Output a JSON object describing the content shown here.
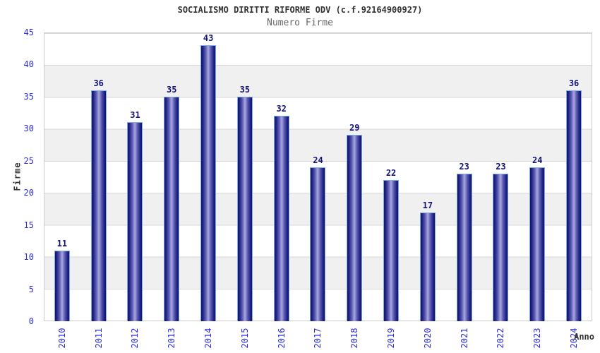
{
  "chart_data": {
    "type": "bar",
    "title": "SOCIALISMO DIRITTI RIFORME ODV (c.f.92164900927)",
    "subtitle": "Numero Firme",
    "xlabel": "Anno",
    "ylabel": "Firme",
    "categories": [
      "2010",
      "2011",
      "2012",
      "2013",
      "2014",
      "2015",
      "2016",
      "2017",
      "2018",
      "2019",
      "2020",
      "2021",
      "2022",
      "2023",
      "2024"
    ],
    "values": [
      11,
      36,
      31,
      35,
      43,
      35,
      32,
      24,
      29,
      22,
      17,
      23,
      23,
      24,
      36
    ],
    "ylim": [
      0,
      45
    ],
    "ytick_step": 5,
    "yticks": [
      0,
      5,
      10,
      15,
      20,
      25,
      30,
      35,
      40,
      45
    ],
    "grid": "alternating-horizontal-bands",
    "legend": "none",
    "value_labels": "above-bars",
    "colors": {
      "bar_edge_dark": "#15156b",
      "bar_center_light": "#a9a9e0",
      "bar_border": "#7aacdf",
      "axis_tick_text": "#2d2de0",
      "value_label_text": "#14147a",
      "title_text": "#333333",
      "subtitle_text": "#666666",
      "band_gray": "#f0f0f0",
      "band_white": "#ffffff",
      "grid_line": "#d9d9d9",
      "plot_border": "#cccccc"
    }
  }
}
